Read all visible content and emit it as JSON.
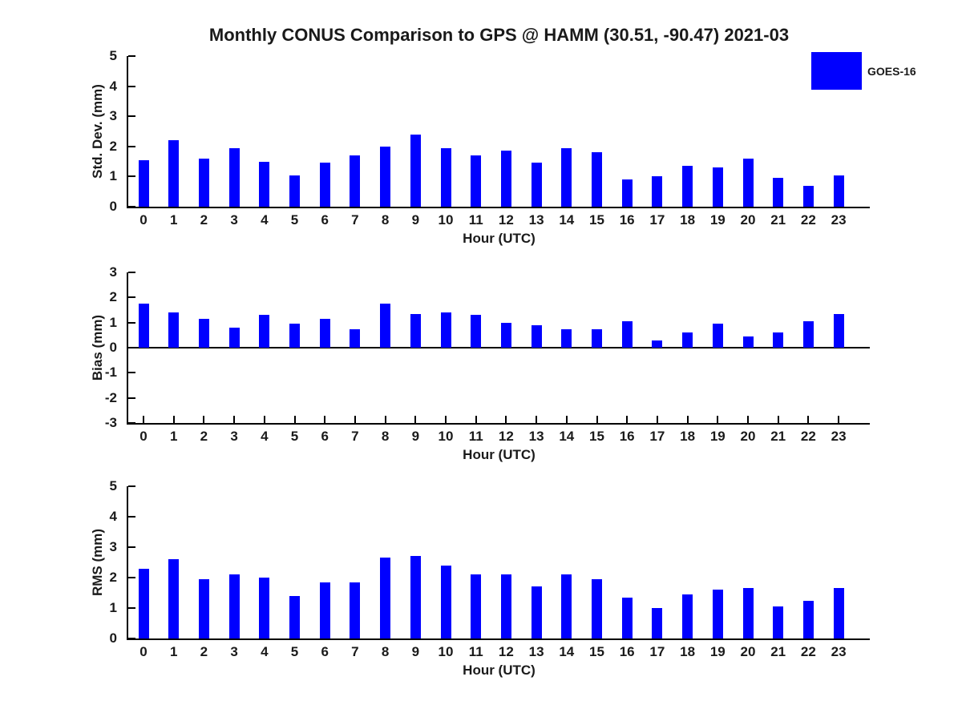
{
  "title": "Monthly CONUS Comparison to GPS @ HAMM (30.51, -90.47) 2021-03",
  "legend": {
    "label": "GOES-16",
    "color": "#0000ff"
  },
  "colors": {
    "bar": "#0000ff",
    "axis": "#000000",
    "text": "#1a1a1a"
  },
  "chart_data": [
    {
      "type": "bar",
      "name": "std-dev",
      "ylabel": "Std. Dev. (mm)",
      "xlabel": "Hour (UTC)",
      "categories": [
        "0",
        "1",
        "2",
        "3",
        "4",
        "5",
        "6",
        "7",
        "8",
        "9",
        "10",
        "11",
        "12",
        "13",
        "14",
        "15",
        "16",
        "17",
        "18",
        "19",
        "20",
        "21",
        "22",
        "23"
      ],
      "values": [
        1.55,
        2.2,
        1.6,
        1.95,
        1.5,
        1.05,
        1.45,
        1.7,
        2.0,
        2.4,
        1.95,
        1.7,
        1.85,
        1.45,
        1.95,
        1.8,
        0.9,
        1.0,
        1.35,
        1.3,
        1.6,
        0.95,
        0.7,
        1.05
      ],
      "ylim": [
        0,
        5
      ],
      "yticks": [
        0,
        1,
        2,
        3,
        4,
        5
      ],
      "grid": false,
      "legend_entries": [
        "GOES-16"
      ],
      "legend_position": "top-right",
      "show_xticks": false
    },
    {
      "type": "bar",
      "name": "bias",
      "ylabel": "Bias (mm)",
      "xlabel": "Hour (UTC)",
      "categories": [
        "0",
        "1",
        "2",
        "3",
        "4",
        "5",
        "6",
        "7",
        "8",
        "9",
        "10",
        "11",
        "12",
        "13",
        "14",
        "15",
        "16",
        "17",
        "18",
        "19",
        "20",
        "21",
        "22",
        "23"
      ],
      "values": [
        1.75,
        1.4,
        1.15,
        0.8,
        1.3,
        0.95,
        1.15,
        0.75,
        1.75,
        1.35,
        1.4,
        1.3,
        1.0,
        0.9,
        0.75,
        0.75,
        1.05,
        0.3,
        0.6,
        0.95,
        0.45,
        0.6,
        1.05,
        1.35
      ],
      "ylim": [
        -3,
        3
      ],
      "yticks": [
        -3,
        -2,
        -1,
        0,
        1,
        2,
        3
      ],
      "grid": false,
      "show_xticks": true
    },
    {
      "type": "bar",
      "name": "rms",
      "ylabel": "RMS (mm)",
      "xlabel": "Hour (UTC)",
      "categories": [
        "0",
        "1",
        "2",
        "3",
        "4",
        "5",
        "6",
        "7",
        "8",
        "9",
        "10",
        "11",
        "12",
        "13",
        "14",
        "15",
        "16",
        "17",
        "18",
        "19",
        "20",
        "21",
        "22",
        "23"
      ],
      "values": [
        2.3,
        2.6,
        1.95,
        2.1,
        2.0,
        1.4,
        1.85,
        1.85,
        2.65,
        2.7,
        2.4,
        2.1,
        2.1,
        1.7,
        2.1,
        1.95,
        1.35,
        1.0,
        1.45,
        1.6,
        1.65,
        1.05,
        1.25,
        1.65
      ],
      "ylim": [
        0,
        5
      ],
      "yticks": [
        0,
        1,
        2,
        3,
        4,
        5
      ],
      "grid": false,
      "show_xticks": false
    }
  ]
}
